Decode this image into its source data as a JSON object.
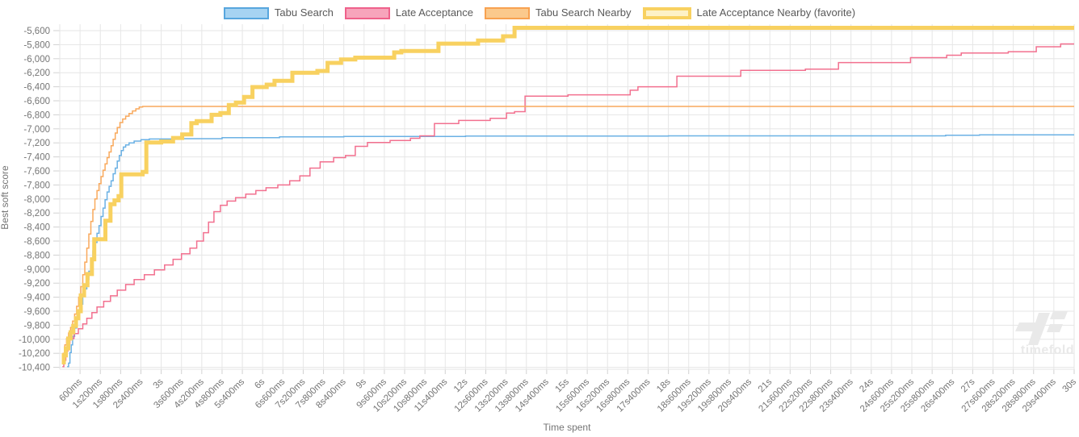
{
  "watermark": {
    "text": "timefold"
  },
  "chart_data": {
    "type": "line",
    "title": "",
    "xlabel": "Time spent",
    "ylabel": "Best soft score",
    "grid": true,
    "legend_position": "top",
    "x_range_seconds": [
      0,
      30
    ],
    "x_tick_interval_ms": 600,
    "x_tick_labels": [
      "600ms",
      "1s200ms",
      "1s800ms",
      "2s400ms",
      "3s",
      "3s600ms",
      "4s200ms",
      "4s800ms",
      "5s400ms",
      "6s",
      "6s600ms",
      "7s200ms",
      "7s800ms",
      "8s400ms",
      "9s",
      "9s600ms",
      "10s200ms",
      "10s800ms",
      "11s400ms",
      "12s",
      "12s600ms",
      "13s200ms",
      "13s800ms",
      "14s400ms",
      "15s",
      "15s600ms",
      "16s200ms",
      "16s800ms",
      "17s400ms",
      "18s",
      "18s600ms",
      "19s200ms",
      "19s800ms",
      "20s400ms",
      "21s",
      "21s600ms",
      "22s200ms",
      "22s800ms",
      "23s400ms",
      "24s",
      "24s600ms",
      "25s200ms",
      "25s800ms",
      "26s400ms",
      "27s",
      "27s600ms",
      "28s200ms",
      "28s800ms",
      "29s400ms",
      "30s"
    ],
    "y_ticks": [
      -5600,
      -5800,
      -6000,
      -6200,
      -6400,
      -6600,
      -6800,
      -7000,
      -7200,
      -7400,
      -7600,
      -7800,
      -8000,
      -8200,
      -8400,
      -8600,
      -8800,
      -9000,
      -9200,
      -9400,
      -9600,
      -9800,
      -10000,
      -10200,
      -10400
    ],
    "y_tick_labels": [
      "-5,600",
      "-5,800",
      "-6,000",
      "-6,200",
      "-6,400",
      "-6,600",
      "-6,800",
      "-7,000",
      "-7,200",
      "-7,400",
      "-7,600",
      "-7,800",
      "-8,000",
      "-8,200",
      "-8,400",
      "-8,600",
      "-8,800",
      "-9,000",
      "-9,200",
      "-9,400",
      "-9,600",
      "-9,800",
      "-10,000",
      "-10,200",
      "-10,400"
    ],
    "series": [
      {
        "name": "Tabu Search",
        "line_color": "#6bb1e4",
        "legend_fill": "#a6d3f2",
        "legend_border": "#57a6de",
        "line_width": 1.5,
        "final_value": -7085,
        "points": [
          [
            0.22,
            -10390
          ],
          [
            0.26,
            -10340
          ],
          [
            0.3,
            -10190
          ],
          [
            0.34,
            -10080
          ],
          [
            0.38,
            -9960
          ],
          [
            0.44,
            -9840
          ],
          [
            0.5,
            -9710
          ],
          [
            0.56,
            -9600
          ],
          [
            0.62,
            -9500
          ],
          [
            0.68,
            -9390
          ],
          [
            0.74,
            -9280
          ],
          [
            0.8,
            -9150
          ],
          [
            0.86,
            -9030
          ],
          [
            0.92,
            -8890
          ],
          [
            0.98,
            -8740
          ],
          [
            1.04,
            -8620
          ],
          [
            1.1,
            -8490
          ],
          [
            1.16,
            -8380
          ],
          [
            1.22,
            -8250
          ],
          [
            1.28,
            -8130
          ],
          [
            1.34,
            -8010
          ],
          [
            1.4,
            -7900
          ],
          [
            1.46,
            -7820
          ],
          [
            1.52,
            -7740
          ],
          [
            1.58,
            -7640
          ],
          [
            1.64,
            -7560
          ],
          [
            1.7,
            -7460
          ],
          [
            1.76,
            -7380
          ],
          [
            1.82,
            -7310
          ],
          [
            1.88,
            -7260
          ],
          [
            1.95,
            -7230
          ],
          [
            2.05,
            -7200
          ],
          [
            2.2,
            -7175
          ],
          [
            2.4,
            -7155
          ],
          [
            2.65,
            -7145
          ],
          [
            3.6,
            -7140
          ],
          [
            4.8,
            -7125
          ],
          [
            6.5,
            -7115
          ],
          [
            8.4,
            -7108
          ],
          [
            12,
            -7102
          ],
          [
            18,
            -7100
          ],
          [
            26.2,
            -7092
          ],
          [
            27.2,
            -7085
          ],
          [
            30,
            -7085
          ]
        ]
      },
      {
        "name": "Late Acceptance",
        "line_color": "#f2708f",
        "legend_fill": "#f7a4bb",
        "legend_border": "#ef618b",
        "line_width": 1.5,
        "final_value": -5790,
        "points": [
          [
            0.08,
            -10390
          ],
          [
            0.12,
            -10300
          ],
          [
            0.18,
            -10170
          ],
          [
            0.24,
            -10060
          ],
          [
            0.3,
            -9990
          ],
          [
            0.42,
            -9920
          ],
          [
            0.55,
            -9850
          ],
          [
            0.68,
            -9780
          ],
          [
            0.8,
            -9700
          ],
          [
            0.95,
            -9620
          ],
          [
            1.1,
            -9540
          ],
          [
            1.3,
            -9460
          ],
          [
            1.5,
            -9380
          ],
          [
            1.7,
            -9300
          ],
          [
            1.95,
            -9220
          ],
          [
            2.2,
            -9150
          ],
          [
            2.5,
            -9080
          ],
          [
            2.8,
            -9010
          ],
          [
            3.1,
            -8940
          ],
          [
            3.35,
            -8860
          ],
          [
            3.6,
            -8780
          ],
          [
            3.85,
            -8700
          ],
          [
            4.05,
            -8600
          ],
          [
            4.25,
            -8480
          ],
          [
            4.4,
            -8330
          ],
          [
            4.56,
            -8180
          ],
          [
            4.75,
            -8090
          ],
          [
            4.95,
            -8030
          ],
          [
            5.2,
            -7980
          ],
          [
            5.5,
            -7930
          ],
          [
            5.8,
            -7880
          ],
          [
            6.1,
            -7840
          ],
          [
            6.45,
            -7800
          ],
          [
            6.8,
            -7740
          ],
          [
            7.1,
            -7670
          ],
          [
            7.4,
            -7560
          ],
          [
            7.7,
            -7470
          ],
          [
            8.1,
            -7410
          ],
          [
            8.45,
            -7380
          ],
          [
            8.74,
            -7250
          ],
          [
            9.1,
            -7195
          ],
          [
            9.77,
            -7165
          ],
          [
            10.37,
            -7135
          ],
          [
            10.65,
            -7100
          ],
          [
            11.08,
            -6925
          ],
          [
            11.8,
            -6880
          ],
          [
            12.73,
            -6850
          ],
          [
            13.21,
            -6775
          ],
          [
            13.45,
            -6755
          ],
          [
            13.76,
            -6535
          ],
          [
            15.03,
            -6515
          ],
          [
            16.87,
            -6450
          ],
          [
            17.1,
            -6400
          ],
          [
            18.25,
            -6250
          ],
          [
            20.14,
            -6165
          ],
          [
            22.05,
            -6150
          ],
          [
            23.03,
            -6055
          ],
          [
            25.16,
            -5985
          ],
          [
            26.23,
            -5950
          ],
          [
            26.66,
            -5920
          ],
          [
            28.05,
            -5900
          ],
          [
            28.88,
            -5830
          ],
          [
            29.6,
            -5790
          ],
          [
            30,
            -5790
          ]
        ]
      },
      {
        "name": "Tabu Search Nearby",
        "line_color": "#f9a95c",
        "legend_fill": "#fbc98c",
        "legend_border": "#f8a150",
        "line_width": 1.5,
        "final_value": -6680,
        "points": [
          [
            0.06,
            -10330
          ],
          [
            0.1,
            -10200
          ],
          [
            0.15,
            -10080
          ],
          [
            0.2,
            -9990
          ],
          [
            0.26,
            -9910
          ],
          [
            0.32,
            -9830
          ],
          [
            0.38,
            -9740
          ],
          [
            0.44,
            -9640
          ],
          [
            0.5,
            -9530
          ],
          [
            0.56,
            -9400
          ],
          [
            0.62,
            -9250
          ],
          [
            0.68,
            -9080
          ],
          [
            0.74,
            -8900
          ],
          [
            0.8,
            -8700
          ],
          [
            0.86,
            -8500
          ],
          [
            0.92,
            -8320
          ],
          [
            0.98,
            -8150
          ],
          [
            1.04,
            -8000
          ],
          [
            1.1,
            -7880
          ],
          [
            1.16,
            -7780
          ],
          [
            1.22,
            -7680
          ],
          [
            1.28,
            -7590
          ],
          [
            1.34,
            -7500
          ],
          [
            1.4,
            -7410
          ],
          [
            1.46,
            -7330
          ],
          [
            1.52,
            -7240
          ],
          [
            1.58,
            -7150
          ],
          [
            1.64,
            -7060
          ],
          [
            1.7,
            -6980
          ],
          [
            1.78,
            -6910
          ],
          [
            1.86,
            -6860
          ],
          [
            1.95,
            -6820
          ],
          [
            2.05,
            -6780
          ],
          [
            2.15,
            -6745
          ],
          [
            2.25,
            -6715
          ],
          [
            2.35,
            -6690
          ],
          [
            2.45,
            -6680
          ],
          [
            30,
            -6680
          ]
        ]
      },
      {
        "name": "Late Acceptance Nearby (favorite)",
        "line_color": "#f8d160",
        "legend_fill": "#fdf1c6",
        "legend_border": "#f8d160",
        "line_width": 5,
        "final_value": -5560,
        "points": [
          [
            0.06,
            -10330
          ],
          [
            0.12,
            -10230
          ],
          [
            0.18,
            -10130
          ],
          [
            0.25,
            -9990
          ],
          [
            0.32,
            -9900
          ],
          [
            0.4,
            -9810
          ],
          [
            0.48,
            -9700
          ],
          [
            0.55,
            -9600
          ],
          [
            0.62,
            -9375
          ],
          [
            0.72,
            -9230
          ],
          [
            0.82,
            -9070
          ],
          [
            0.95,
            -8860
          ],
          [
            1.02,
            -8575
          ],
          [
            1.35,
            -8310
          ],
          [
            1.5,
            -8075
          ],
          [
            1.62,
            -8020
          ],
          [
            1.74,
            -7960
          ],
          [
            1.82,
            -7650
          ],
          [
            2.45,
            -7615
          ],
          [
            2.56,
            -7195
          ],
          [
            3.0,
            -7180
          ],
          [
            3.35,
            -7130
          ],
          [
            3.62,
            -7080
          ],
          [
            3.89,
            -6920
          ],
          [
            4.05,
            -6890
          ],
          [
            4.49,
            -6800
          ],
          [
            4.75,
            -6775
          ],
          [
            5.0,
            -6660
          ],
          [
            5.21,
            -6625
          ],
          [
            5.45,
            -6545
          ],
          [
            5.7,
            -6405
          ],
          [
            6.12,
            -6370
          ],
          [
            6.35,
            -6315
          ],
          [
            6.88,
            -6200
          ],
          [
            7.62,
            -6175
          ],
          [
            7.92,
            -6060
          ],
          [
            8.32,
            -6010
          ],
          [
            8.74,
            -5985
          ],
          [
            9.89,
            -5910
          ],
          [
            10.1,
            -5890
          ],
          [
            11.2,
            -5785
          ],
          [
            12.37,
            -5740
          ],
          [
            13.11,
            -5680
          ],
          [
            13.45,
            -5560
          ],
          [
            30,
            -5560
          ]
        ]
      }
    ],
    "colors": {
      "gridline": "#e6e6e6",
      "tick_mark": "#d2d2d2",
      "axis_text": "#757575",
      "legend_text": "#595959",
      "watermark": "#e9e9e9"
    }
  }
}
